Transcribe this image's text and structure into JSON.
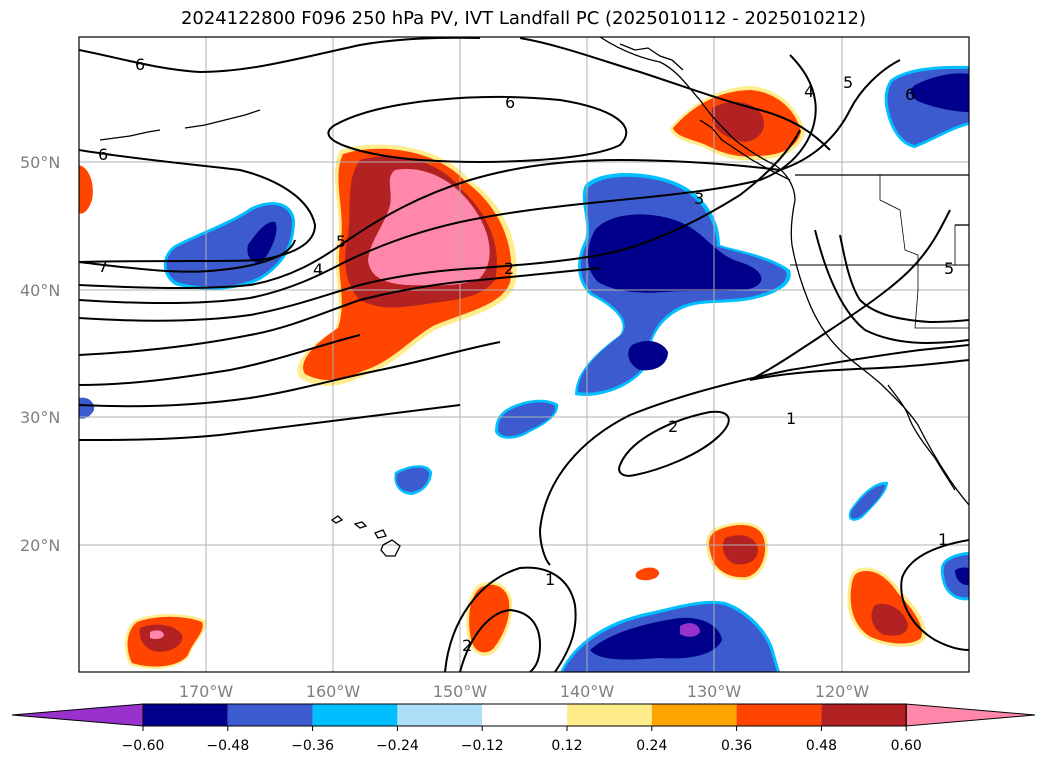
{
  "title": "2024122800 F096 250 hPa PV, IVT Landfall PC (2025010112 - 2025010212)",
  "map": {
    "lat_labels": [
      "50°N",
      "40°N",
      "30°N",
      "20°N"
    ],
    "lon_labels": [
      "170°W",
      "160°W",
      "150°W",
      "140°W",
      "130°W",
      "120°W"
    ],
    "contour_labels": [
      "6",
      "6",
      "6",
      "7",
      "5",
      "4",
      "2",
      "3",
      "4",
      "5",
      "6",
      "2",
      "1",
      "1",
      "1",
      "2",
      "5"
    ]
  },
  "colorbar": {
    "ticks": [
      "−0.60",
      "−0.48",
      "−0.36",
      "−0.24",
      "−0.12",
      "0.12",
      "0.24",
      "0.36",
      "0.48",
      "0.60"
    ],
    "colors": [
      "#9932CC",
      "#00008B",
      "#3B5BCF",
      "#00BFFF",
      "#ADDFF8",
      "#FFFFFF",
      "#FFEC8B",
      "#FFA500",
      "#FF4500",
      "#B22222",
      "#FF88AA"
    ]
  },
  "colors": {
    "neg_1": "#00008B",
    "neg_2": "#3B5BCF",
    "neg_3": "#00BFFF",
    "neg_4": "#ADDFF8",
    "pos_1": "#FFEC8B",
    "pos_2": "#FFA500",
    "pos_3": "#FF4500",
    "pos_4": "#B22222",
    "pos_5": "#FF88AA",
    "purple": "#9932CC",
    "grid": "#b0b0b0"
  }
}
